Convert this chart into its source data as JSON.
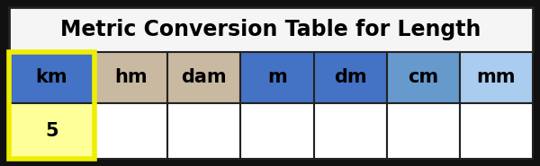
{
  "title": "Metric Conversion Table for Length",
  "headers": [
    "km",
    "hm",
    "dam",
    "m",
    "dm",
    "cm",
    "mm"
  ],
  "header_colors": [
    "#4472C4",
    "#C8B9A0",
    "#C8B9A0",
    "#4472C4",
    "#4472C4",
    "#6699CC",
    "#AACCEE"
  ],
  "data_row": [
    "5",
    "",
    "",
    "",
    "",
    "",
    ""
  ],
  "data_cell_colors": [
    "#FFFF99",
    "#FFFFFF",
    "#FFFFFF",
    "#FFFFFF",
    "#FFFFFF",
    "#FFFFFF",
    "#FFFFFF"
  ],
  "title_bg": "#F5F5F5",
  "border_color": "#222222",
  "highlight_border_color": "#EEEE00",
  "title_fontsize": 17,
  "header_fontsize": 15,
  "data_fontsize": 15,
  "fig_bg": "#111111",
  "outer_bg": "#111111"
}
